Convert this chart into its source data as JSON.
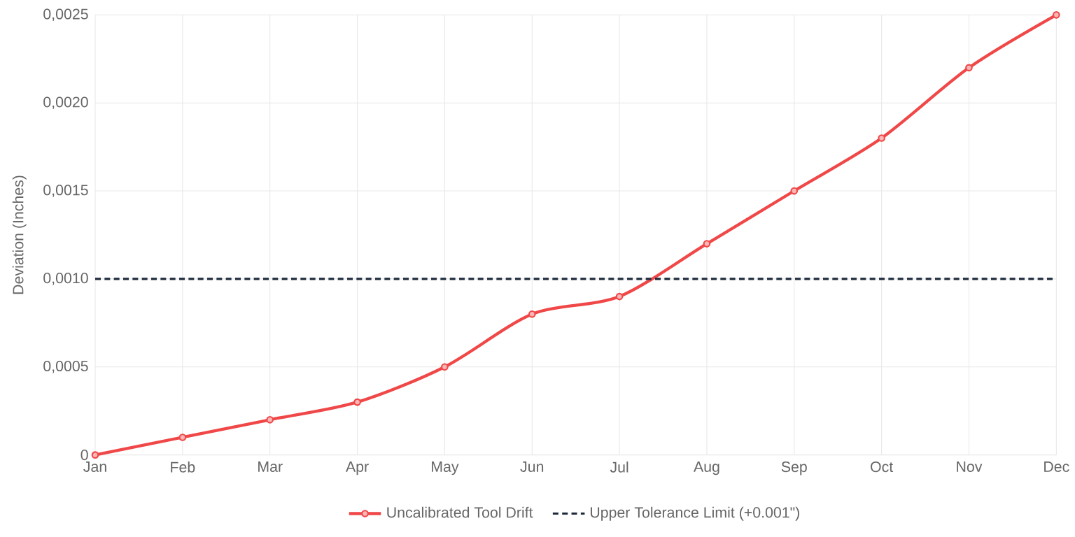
{
  "chart_data": {
    "type": "line",
    "ylabel": "Deviation (Inches)",
    "categories": [
      "Jan",
      "Feb",
      "Mar",
      "Apr",
      "May",
      "Jun",
      "Jul",
      "Aug",
      "Sep",
      "Oct",
      "Nov",
      "Dec"
    ],
    "series": [
      {
        "name": "Uncalibrated Tool Drift",
        "color": "#f04848",
        "marker": "circle",
        "line_style": "solid",
        "values": [
          0,
          0.0001,
          0.0002,
          0.0003,
          0.0005,
          0.0008,
          0.0009,
          0.0012,
          0.0015,
          0.0018,
          0.0022,
          0.0025
        ]
      },
      {
        "name": "Upper Tolerance Limit (+0.001\")",
        "color": "#1e2a3c",
        "marker": "none",
        "line_style": "dashed",
        "values": [
          0.001,
          0.001,
          0.001,
          0.001,
          0.001,
          0.001,
          0.001,
          0.001,
          0.001,
          0.001,
          0.001,
          0.001
        ]
      }
    ],
    "ylim": [
      0,
      0.0025
    ],
    "yticks": [
      0,
      {
        "value": 0.0005,
        "label": "0,0005"
      },
      {
        "value": 0.001,
        "label": "0,0010"
      },
      {
        "value": 0.0015,
        "label": "0,0015"
      },
      {
        "value": 0.002,
        "label": "0,0020"
      },
      {
        "value": 0.0025,
        "label": "0,0025"
      }
    ],
    "grid": true,
    "legend": "bottom"
  }
}
